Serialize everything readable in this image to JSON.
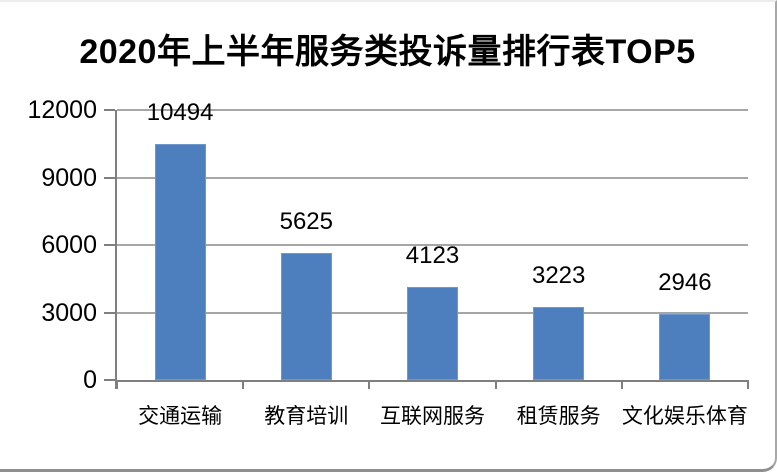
{
  "chart_data": {
    "type": "bar",
    "title": "2020年上半年服务类投诉量排行表TOP5",
    "categories": [
      "交通运输",
      "教育培训",
      "互联网服务",
      "租赁服务",
      "文化娱乐体育"
    ],
    "values": [
      10494,
      5625,
      4123,
      3223,
      2946
    ],
    "data_labels": [
      "10494",
      "5625",
      "4123",
      "3223",
      "2946"
    ],
    "yticks": [
      0,
      3000,
      6000,
      9000,
      12000
    ],
    "ytick_labels": [
      "0",
      "3000",
      "6000",
      "9000",
      "12000"
    ],
    "ylim": [
      0,
      12000
    ],
    "xlabel": "",
    "ylabel": "",
    "grid": "horizontal gridlines at every 3000",
    "legend": "none",
    "bar_color": "#4d7ebd",
    "bar_edge_color": "#6e97cb",
    "gridline_color": "#a6a6a6",
    "axis_color": "#7f7f7f",
    "text_color": "#000000",
    "background_color": "#ffffff"
  }
}
